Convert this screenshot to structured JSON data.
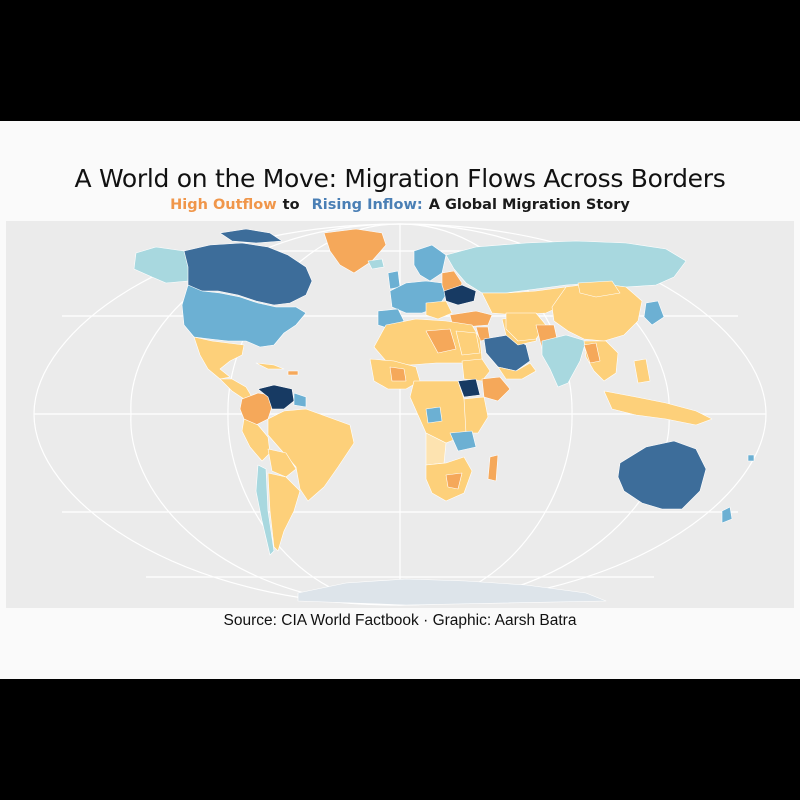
{
  "header": {
    "title": "A World on the Move: Migration Flows Across Borders",
    "subtitle_outflow": "High Outflow",
    "subtitle_to": "to",
    "subtitle_inflow": "Rising Inflow:",
    "subtitle_rest": "A Global Migration Story"
  },
  "caption": "Source: CIA World Factbook · Graphic: Aarsh Batra",
  "map": {
    "projection": "Robinson-like world projection with white graticule",
    "colors": {
      "panel_background": "#ebebeb",
      "graticule": "#ffffff",
      "high_outflow_orange": "#f5a85a",
      "outflow_light": "#fdd07a",
      "neutral_pale": "#fde3b0",
      "inflow_light": "#a8d8df",
      "inflow_mid": "#6cb0d3",
      "inflow_strong": "#3d6d9a",
      "inflow_strongest": "#173a63",
      "no_data": "#dde4ea"
    },
    "regions": [
      {
        "name": "Canada",
        "category": "inflow_strong"
      },
      {
        "name": "United States",
        "category": "inflow_mid"
      },
      {
        "name": "Alaska",
        "category": "inflow_light"
      },
      {
        "name": "Greenland",
        "category": "high_outflow_orange"
      },
      {
        "name": "Mexico",
        "category": "outflow_light"
      },
      {
        "name": "Central America",
        "category": "outflow_light"
      },
      {
        "name": "Colombia",
        "category": "high_outflow_orange"
      },
      {
        "name": "Venezuela",
        "category": "inflow_strongest"
      },
      {
        "name": "Brazil",
        "category": "outflow_light"
      },
      {
        "name": "Peru",
        "category": "outflow_light"
      },
      {
        "name": "Chile",
        "category": "inflow_light"
      },
      {
        "name": "Argentina",
        "category": "outflow_light"
      },
      {
        "name": "Europe",
        "category": "inflow_mid"
      },
      {
        "name": "Ukraine",
        "category": "inflow_strongest"
      },
      {
        "name": "Russia",
        "category": "inflow_light"
      },
      {
        "name": "Saudi Arabia",
        "category": "inflow_strong"
      },
      {
        "name": "North Africa",
        "category": "outflow_light"
      },
      {
        "name": "South Sudan",
        "category": "inflow_strongest"
      },
      {
        "name": "Central Africa",
        "category": "outflow_light"
      },
      {
        "name": "Southern Africa",
        "category": "outflow_light"
      },
      {
        "name": "China",
        "category": "outflow_light"
      },
      {
        "name": "India",
        "category": "inflow_light"
      },
      {
        "name": "Central Asia",
        "category": "outflow_light"
      },
      {
        "name": "Southeast Asia",
        "category": "outflow_light"
      },
      {
        "name": "Indonesia",
        "category": "outflow_light"
      },
      {
        "name": "Australia",
        "category": "inflow_strong"
      },
      {
        "name": "New Zealand",
        "category": "inflow_mid"
      },
      {
        "name": "Antarctica",
        "category": "no_data"
      }
    ]
  }
}
